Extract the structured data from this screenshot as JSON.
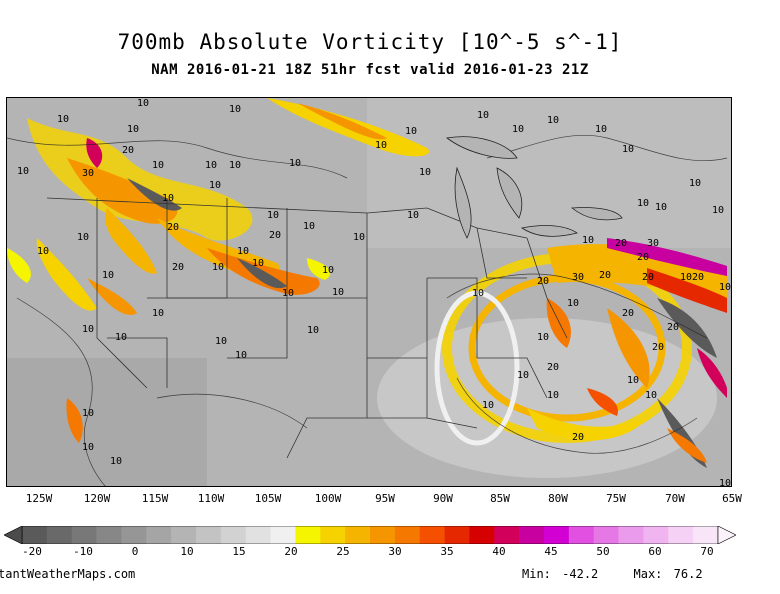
{
  "header": {
    "title": "700mb Absolute Vorticity [10^-5 s^-1]",
    "subtitle": "NAM 2016-01-21 18Z 51hr fcst valid 2016-01-23 21Z"
  },
  "map": {
    "background_color": "#b4b4b4",
    "longitude_labels": [
      "125W",
      "120W",
      "115W",
      "110W",
      "105W",
      "100W",
      "95W",
      "90W",
      "85W",
      "80W",
      "75W",
      "70W",
      "65W"
    ],
    "contour_labels": [
      "10",
      "20",
      "30"
    ]
  },
  "colorbar": {
    "tick_labels": [
      "-20",
      "-10",
      "0",
      "10",
      "15",
      "20",
      "25",
      "30",
      "35",
      "40",
      "45",
      "50",
      "60",
      "70"
    ],
    "colors": [
      "#5a5a5a",
      "#696969",
      "#787878",
      "#878787",
      "#969696",
      "#a5a5a5",
      "#b4b4b4",
      "#c3c3c3",
      "#d2d2d2",
      "#e1e1e1",
      "#f0f0f0",
      "#f5f500",
      "#f5d200",
      "#f5b400",
      "#f59600",
      "#f57800",
      "#f55000",
      "#e62800",
      "#d70000",
      "#d2005a",
      "#c800a0",
      "#d200d2",
      "#e150e1",
      "#e678e6",
      "#eb9beb",
      "#f0b4f0",
      "#f5d2f5",
      "#f8e6f8"
    ]
  },
  "footer": {
    "site": "tantWeatherMaps.com",
    "min_label": "Min:",
    "min_value": "-42.2",
    "max_label": "Max:",
    "max_value": "76.2"
  }
}
